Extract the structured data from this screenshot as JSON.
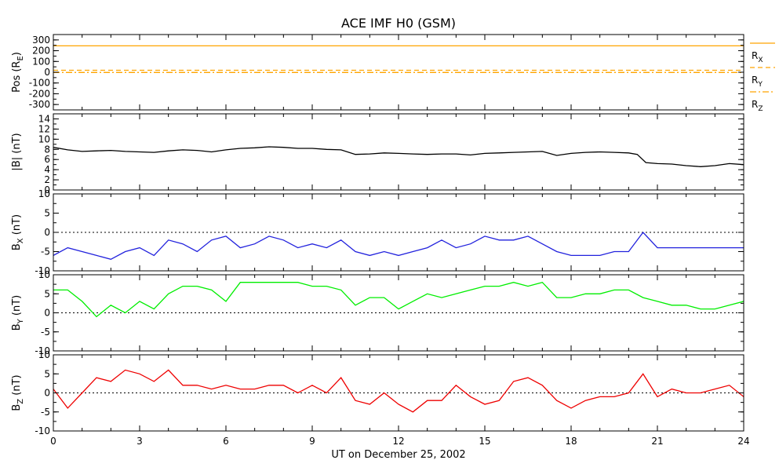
{
  "chart_data": {
    "type": "line",
    "title": "ACE IMF H0 (GSM)",
    "xlabel": "UT on December 25, 2002",
    "x_ticks": [
      "0",
      "3",
      "6",
      "9",
      "12",
      "15",
      "18",
      "21",
      "24"
    ],
    "xlim": [
      0,
      24
    ],
    "panels": [
      {
        "id": "pos",
        "ylabel": "Pos (R",
        "ylabel_sub": "E",
        "ylabel_end": ")",
        "ylim": [
          -350,
          350
        ],
        "y_ticks": [
          -300,
          -200,
          -100,
          0,
          100,
          200,
          300
        ],
        "y_tick_labels": [
          "-300",
          "-200",
          "-100",
          "0",
          "100",
          "200",
          "300"
        ],
        "series": [
          {
            "name": "R",
            "sub": "X",
            "color": "#ffa500",
            "style": "solid",
            "x": [
              0,
              24
            ],
            "y": [
              245,
              245
            ]
          },
          {
            "name": "R",
            "sub": "Y",
            "color": "#ffa500",
            "style": "dashed",
            "x": [
              0,
              24
            ],
            "y": [
              18,
              18
            ]
          },
          {
            "name": "R",
            "sub": "Z",
            "color": "#ffa500",
            "style": "dashdot",
            "x": [
              0,
              24
            ],
            "y": [
              -2,
              -2
            ]
          }
        ],
        "zero_line": false
      },
      {
        "id": "btot",
        "ylabel": "|B| (nT)",
        "ylim": [
          0,
          15
        ],
        "y_ticks": [
          0,
          2,
          4,
          6,
          8,
          10,
          12,
          14
        ],
        "y_tick_labels": [
          "0",
          "2",
          "4",
          "6",
          "8",
          "10",
          "12",
          "14"
        ],
        "series": [
          {
            "color": "#000000",
            "x": [
              0,
              0.5,
              1,
              1.5,
              2,
              2.5,
              3,
              3.5,
              4,
              4.5,
              5,
              5.5,
              6,
              6.5,
              7,
              7.5,
              8,
              8.5,
              9,
              9.5,
              10,
              10.5,
              11,
              11.5,
              12,
              12.5,
              13,
              13.5,
              14,
              14.5,
              15,
              15.5,
              16,
              16.5,
              17,
              17.5,
              18,
              18.5,
              19,
              19.5,
              20,
              20.3,
              20.6,
              21,
              21.5,
              22,
              22.5,
              23,
              23.5,
              24
            ],
            "y": [
              8.4,
              7.9,
              7.6,
              7.7,
              7.8,
              7.6,
              7.5,
              7.4,
              7.7,
              7.9,
              7.8,
              7.5,
              7.9,
              8.2,
              8.3,
              8.5,
              8.4,
              8.2,
              8.2,
              8.0,
              7.9,
              7.0,
              7.1,
              7.3,
              7.2,
              7.1,
              7.0,
              7.1,
              7.1,
              6.9,
              7.2,
              7.3,
              7.4,
              7.5,
              7.6,
              6.8,
              7.2,
              7.4,
              7.5,
              7.4,
              7.3,
              7.0,
              5.4,
              5.2,
              5.1,
              4.8,
              4.6,
              4.8,
              5.2,
              5.0
            ]
          }
        ],
        "zero_line": false
      },
      {
        "id": "bx",
        "ylabel": "B",
        "ylabel_sub": "X",
        "ylabel_end": " (nT)",
        "ylim": [
          -10,
          10
        ],
        "y_ticks": [
          -10,
          -5,
          0,
          5,
          10
        ],
        "y_tick_labels": [
          "-10",
          "-5",
          "0",
          "5",
          "10"
        ],
        "series": [
          {
            "color": "#2222dd",
            "x": [
              0,
              0.5,
              1,
              1.5,
              2,
              2.5,
              3,
              3.5,
              4,
              4.5,
              5,
              5.5,
              6,
              6.5,
              7,
              7.5,
              8,
              8.5,
              9,
              9.5,
              10,
              10.5,
              11,
              11.5,
              12,
              12.5,
              13,
              13.5,
              14,
              14.5,
              15,
              15.5,
              16,
              16.5,
              17,
              17.5,
              18,
              18.5,
              19,
              19.5,
              20,
              20.5,
              21,
              21.5,
              22,
              22.5,
              23,
              23.5,
              24
            ],
            "y": [
              -6,
              -4,
              -5,
              -6,
              -7,
              -5,
              -4,
              -6,
              -2,
              -3,
              -5,
              -2,
              -1,
              -4,
              -3,
              -1,
              -2,
              -4,
              -3,
              -4,
              -2,
              -5,
              -6,
              -5,
              -6,
              -5,
              -4,
              -2,
              -4,
              -3,
              -1,
              -2,
              -2,
              -1,
              -3,
              -5,
              -6,
              -6,
              -6,
              -5,
              -5,
              0,
              -4,
              -4,
              -4,
              -4,
              -4,
              -4,
              -4
            ]
          }
        ],
        "zero_line": true
      },
      {
        "id": "by",
        "ylabel": "B",
        "ylabel_sub": "Y",
        "ylabel_end": " (nT)",
        "ylim": [
          -10,
          10
        ],
        "y_ticks": [
          -10,
          -5,
          0,
          5,
          10
        ],
        "y_tick_labels": [
          "-10",
          "-5",
          "0",
          "5",
          "10"
        ],
        "series": [
          {
            "color": "#00ee00",
            "x": [
              0,
              0.5,
              1,
              1.5,
              2,
              2.5,
              3,
              3.5,
              4,
              4.5,
              5,
              5.5,
              6,
              6.5,
              7,
              7.5,
              8,
              8.5,
              9,
              9.5,
              10,
              10.5,
              11,
              11.5,
              12,
              12.5,
              13,
              13.5,
              14,
              14.5,
              15,
              15.5,
              16,
              16.5,
              17,
              17.5,
              18,
              18.5,
              19,
              19.5,
              20,
              20.5,
              21,
              21.5,
              22,
              22.5,
              23,
              23.5,
              24
            ],
            "y": [
              6,
              6,
              3,
              -1,
              2,
              0,
              3,
              1,
              5,
              7,
              7,
              6,
              3,
              8,
              8,
              8,
              8,
              8,
              7,
              7,
              6,
              2,
              4,
              4,
              1,
              3,
              5,
              4,
              5,
              6,
              7,
              7,
              8,
              7,
              8,
              4,
              4,
              5,
              5,
              6,
              6,
              4,
              3,
              2,
              2,
              1,
              1,
              2,
              3
            ]
          }
        ],
        "zero_line": true
      },
      {
        "id": "bz",
        "ylabel": "B",
        "ylabel_sub": "Z",
        "ylabel_end": " (nT)",
        "ylim": [
          -10,
          10
        ],
        "y_ticks": [
          -10,
          -5,
          0,
          5,
          10
        ],
        "y_tick_labels": [
          "-10",
          "-5",
          "0",
          "5",
          "10"
        ],
        "series": [
          {
            "color": "#ee0000",
            "x": [
              0,
              0.5,
              1,
              1.5,
              2,
              2.5,
              3,
              3.5,
              4,
              4.5,
              5,
              5.5,
              6,
              6.5,
              7,
              7.5,
              8,
              8.5,
              9,
              9.5,
              10,
              10.5,
              11,
              11.5,
              12,
              12.5,
              13,
              13.5,
              14,
              14.5,
              15,
              15.5,
              16,
              16.5,
              17,
              17.5,
              18,
              18.5,
              19,
              19.5,
              20,
              20.5,
              21,
              21.5,
              22,
              22.5,
              23,
              23.5,
              24
            ],
            "y": [
              1,
              -4,
              0,
              4,
              3,
              6,
              5,
              3,
              6,
              2,
              2,
              1,
              2,
              1,
              1,
              2,
              2,
              0,
              2,
              0,
              4,
              -2,
              -3,
              0,
              -3,
              -5,
              -2,
              -2,
              2,
              -1,
              -3,
              -2,
              3,
              4,
              2,
              -2,
              -4,
              -2,
              -1,
              -1,
              0,
              5,
              -1,
              1,
              0,
              0,
              1,
              2,
              -1
            ]
          }
        ],
        "zero_line": true
      }
    ]
  }
}
